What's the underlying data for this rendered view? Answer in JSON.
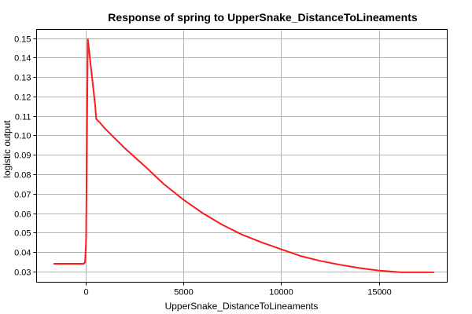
{
  "chart_data": {
    "type": "line",
    "title": "Response of spring to UpperSnake_DistanceToLineaments",
    "xlabel": "UpperSnake_DistanceToLineaments",
    "ylabel": "logistic output",
    "xlim": [
      -2500,
      18500
    ],
    "ylim": [
      0.0245,
      0.1545
    ],
    "x_ticks": [
      0,
      5000,
      10000,
      15000
    ],
    "x_tick_labels": [
      "0",
      "5000",
      "10000",
      "15000"
    ],
    "y_ticks": [
      0.03,
      0.04,
      0.05,
      0.06,
      0.07,
      0.08,
      0.09,
      0.1,
      0.11,
      0.12,
      0.13,
      0.14,
      0.15
    ],
    "y_tick_labels": [
      "0.03",
      "0.04",
      "0.05",
      "0.06",
      "0.07",
      "0.08",
      "0.09",
      "0.10",
      "0.11",
      "0.12",
      "0.13",
      "0.14",
      "0.15"
    ],
    "grid": true,
    "line_color": "#ff1a1a",
    "series": [
      {
        "x": [
          -1600,
          -100,
          -20,
          30,
          120,
          500,
          550,
          700,
          1000,
          1500,
          2000,
          3000,
          4000,
          5000,
          6000,
          7000,
          8000,
          9000,
          10000,
          11000,
          12000,
          13000,
          14000,
          15000,
          16000,
          16200,
          17800
        ],
        "y": [
          0.034,
          0.034,
          0.0348,
          0.045,
          0.1495,
          0.115,
          0.1085,
          0.107,
          0.1035,
          0.0985,
          0.0935,
          0.0845,
          0.075,
          0.067,
          0.06,
          0.054,
          0.049,
          0.045,
          0.0415,
          0.038,
          0.0355,
          0.0335,
          0.0318,
          0.0305,
          0.0297,
          0.0296,
          0.0296
        ]
      }
    ]
  }
}
